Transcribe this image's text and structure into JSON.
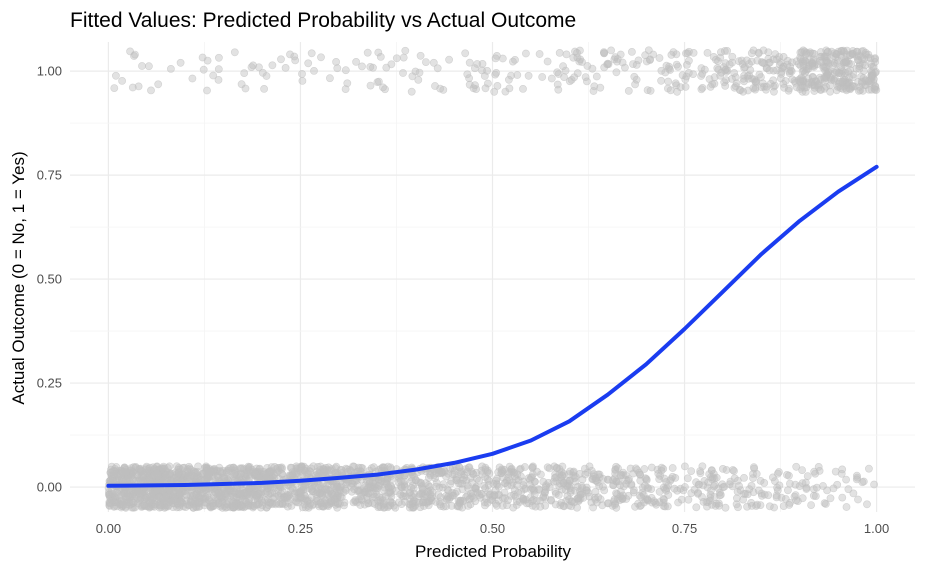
{
  "chart_data": {
    "type": "scatter",
    "title": "Fitted Values: Predicted Probability vs Actual Outcome",
    "xlabel": "Predicted Probability",
    "ylabel": "Actual Outcome (0 = No, 1 = Yes)",
    "xlim": [
      -0.05,
      1.05
    ],
    "ylim": [
      -0.06,
      1.07
    ],
    "x_ticks": [
      0,
      0.25,
      0.5,
      0.75,
      1
    ],
    "x_tick_labels": [
      "0.00",
      "0.25",
      "0.50",
      "0.75",
      "1.00"
    ],
    "y_ticks": [
      0,
      0.25,
      0.5,
      0.75,
      1
    ],
    "y_tick_labels": [
      "0.00",
      "0.25",
      "0.50",
      "0.75",
      "1.00"
    ],
    "grid": true,
    "point_color": "#bebebe",
    "curve_color": "#1a3cf0",
    "jitter_height": 0.05,
    "points_outcome_0_density": [
      {
        "x_from": 0.0,
        "x_to": 0.1,
        "count": 520
      },
      {
        "x_from": 0.1,
        "x_to": 0.2,
        "count": 420
      },
      {
        "x_from": 0.2,
        "x_to": 0.3,
        "count": 330
      },
      {
        "x_from": 0.3,
        "x_to": 0.4,
        "count": 250
      },
      {
        "x_from": 0.4,
        "x_to": 0.5,
        "count": 190
      },
      {
        "x_from": 0.5,
        "x_to": 0.6,
        "count": 160
      },
      {
        "x_from": 0.6,
        "x_to": 0.7,
        "count": 140
      },
      {
        "x_from": 0.7,
        "x_to": 0.8,
        "count": 100
      },
      {
        "x_from": 0.8,
        "x_to": 0.9,
        "count": 70
      },
      {
        "x_from": 0.9,
        "x_to": 1.0,
        "count": 40
      }
    ],
    "points_outcome_1_density": [
      {
        "x_from": 0.0,
        "x_to": 0.1,
        "count": 14
      },
      {
        "x_from": 0.1,
        "x_to": 0.2,
        "count": 16
      },
      {
        "x_from": 0.2,
        "x_to": 0.3,
        "count": 18
      },
      {
        "x_from": 0.3,
        "x_to": 0.4,
        "count": 24
      },
      {
        "x_from": 0.4,
        "x_to": 0.5,
        "count": 26
      },
      {
        "x_from": 0.5,
        "x_to": 0.6,
        "count": 30
      },
      {
        "x_from": 0.6,
        "x_to": 0.7,
        "count": 45
      },
      {
        "x_from": 0.7,
        "x_to": 0.8,
        "count": 60
      },
      {
        "x_from": 0.8,
        "x_to": 0.9,
        "count": 110
      },
      {
        "x_from": 0.9,
        "x_to": 1.0,
        "count": 260
      }
    ],
    "fitted_curve": {
      "x": [
        0.0,
        0.1,
        0.2,
        0.25,
        0.3,
        0.35,
        0.4,
        0.45,
        0.5,
        0.55,
        0.6,
        0.65,
        0.7,
        0.75,
        0.8,
        0.85,
        0.9,
        0.95,
        1.0
      ],
      "y": [
        0.003,
        0.005,
        0.01,
        0.015,
        0.022,
        0.03,
        0.042,
        0.058,
        0.08,
        0.112,
        0.158,
        0.222,
        0.295,
        0.38,
        0.47,
        0.56,
        0.64,
        0.71,
        0.77
      ]
    }
  }
}
